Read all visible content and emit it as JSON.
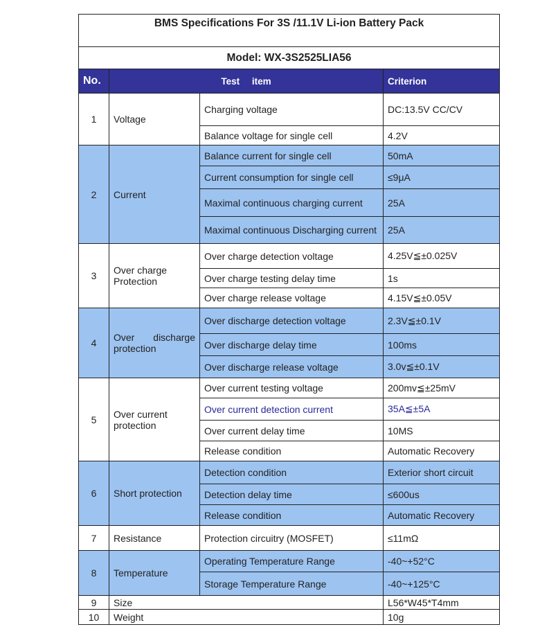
{
  "title": "BMS Specifications For 3S /11.1V Li-ion Battery Pack",
  "model": "Model: WX-3S2525LIA56",
  "header": {
    "no": "No.",
    "test_item": "Test item",
    "criterion": "Criterion"
  },
  "colors": {
    "header_bg": "#333399",
    "highlight_bg": "#9dc3f0",
    "accent_text": "#2a2a9a"
  },
  "groups": [
    {
      "no": "1",
      "category": "Voltage",
      "highlight": false,
      "items": [
        {
          "item": "Charging voltage",
          "criterion": "DC:13.5V    CC/CV"
        },
        {
          "item": "Balance voltage for single cell",
          "criterion": "4.2V"
        }
      ]
    },
    {
      "no": "2",
      "category": "Current",
      "highlight": true,
      "items": [
        {
          "item": "Balance current for single cell",
          "criterion": "50mA"
        },
        {
          "item": "Current consumption for single cell",
          "criterion": "≤9μA"
        },
        {
          "item": "Maximal continuous charging current",
          "criterion": "25A"
        },
        {
          "item": "Maximal continuous Discharging current",
          "criterion": "25A"
        }
      ]
    },
    {
      "no": "3",
      "category": "Over charge Protection",
      "highlight": false,
      "items": [
        {
          "item": "Over charge detection voltage",
          "criterion": "4.25V≦±0.025V"
        },
        {
          "item": "Over charge testing delay time",
          "criterion": "1s"
        },
        {
          "item": "Over charge release voltage",
          "criterion": "4.15V≦±0.05V"
        }
      ]
    },
    {
      "no": "4",
      "category": "Over discharge protection",
      "highlight": true,
      "justify": true,
      "items": [
        {
          "item": "Over discharge detection voltage",
          "criterion": "2.3V≦±0.1V"
        },
        {
          "item": "Over discharge delay time",
          "criterion": "100ms"
        },
        {
          "item": "Over discharge release voltage",
          "criterion": "3.0v≦±0.1V"
        }
      ]
    },
    {
      "no": "5",
      "category": "Over current protection",
      "highlight": false,
      "items": [
        {
          "item": "Over current testing voltage",
          "criterion": "200mv≦±25mV"
        },
        {
          "item": "Over current detection current",
          "criterion": "35A≦±5A",
          "accent": true
        },
        {
          "item": "Over current delay time",
          "criterion": "10MS"
        },
        {
          "item": "Release condition",
          "criterion": "Automatic Recovery"
        }
      ]
    },
    {
      "no": "6",
      "category": "Short protection",
      "highlight": true,
      "items": [
        {
          "item": "Detection condition",
          "criterion": "Exterior short circuit"
        },
        {
          "item": "Detection delay time",
          "criterion": "≤600us"
        },
        {
          "item": "Release condition",
          "criterion": "Automatic Recovery"
        }
      ]
    },
    {
      "no": "7",
      "category": "Resistance",
      "highlight": false,
      "items": [
        {
          "item": "Protection   circuitry (MOSFET)",
          "criterion": "≤11mΩ"
        }
      ]
    },
    {
      "no": "8",
      "category": "Temperature",
      "highlight": true,
      "items": [
        {
          "item": "Operating Temperature Range",
          "criterion": "-40~+52°C"
        },
        {
          "item": "Storage Temperature Range",
          "criterion": "-40~+125°C"
        }
      ]
    },
    {
      "no": "9",
      "category": "Size",
      "highlight": false,
      "span": true,
      "items": [
        {
          "item": "",
          "criterion": "L56*W45*T4mm"
        }
      ]
    },
    {
      "no": "10",
      "category": "Weight",
      "highlight": false,
      "span": true,
      "items": [
        {
          "item": "",
          "criterion": "10g"
        }
      ]
    }
  ]
}
